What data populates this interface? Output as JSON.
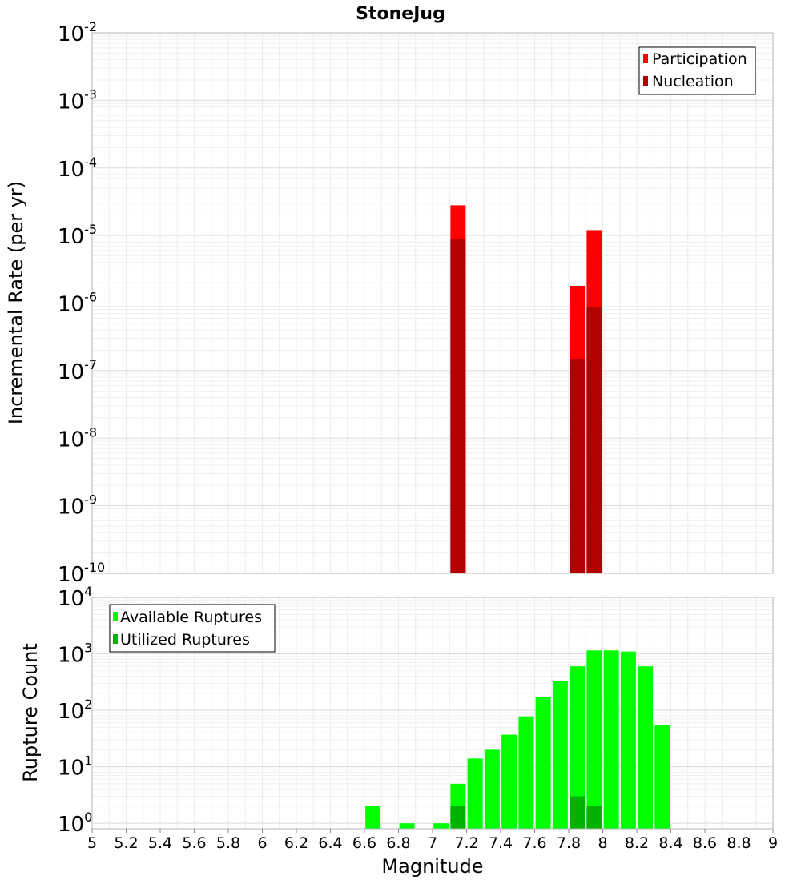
{
  "chart_data": [
    {
      "type": "bar",
      "title": "StoneJug",
      "xlabel": "",
      "ylabel": "Incremental Rate (per yr)",
      "yscale": "log",
      "ylim": [
        1e-10,
        0.01
      ],
      "xlim": [
        5,
        9
      ],
      "ytick_exponents": [
        "-10",
        "-9",
        "-8",
        "-7",
        "-6",
        "-5",
        "-4",
        "-3",
        "-2"
      ],
      "ytick_base": "10",
      "legend_position": "top-right",
      "series": [
        {
          "name": "Participation",
          "color": "#ff0000",
          "x": [
            7.15,
            7.85,
            7.95
          ],
          "values": [
            2.8e-05,
            1.8e-06,
            1.2e-05
          ]
        },
        {
          "name": "Nucleation",
          "color": "#b30000",
          "x": [
            7.15,
            7.85,
            7.95
          ],
          "values": [
            9e-06,
            1.5e-07,
            8.8e-07
          ]
        }
      ]
    },
    {
      "type": "bar",
      "title": "",
      "xlabel": "Magnitude",
      "ylabel": "Rupture Count",
      "yscale": "log",
      "ylim": [
        0.8,
        10000
      ],
      "xlim": [
        5,
        9
      ],
      "ytick_exponents": [
        "0",
        "1",
        "2",
        "3",
        "4"
      ],
      "ytick_base": "10",
      "xticks": [
        "5",
        "5.2",
        "5.4",
        "5.6",
        "5.8",
        "6",
        "6.2",
        "6.4",
        "6.6",
        "6.8",
        "7",
        "7.2",
        "7.4",
        "7.6",
        "7.8",
        "8",
        "8.2",
        "8.4",
        "8.6",
        "8.8",
        "9"
      ],
      "legend_position": "top-left",
      "series": [
        {
          "name": "Available Ruptures",
          "color": "#00ff00",
          "x": [
            6.65,
            6.85,
            7.05,
            7.15,
            7.25,
            7.35,
            7.45,
            7.55,
            7.65,
            7.75,
            7.85,
            7.95,
            8.05,
            8.15,
            8.25,
            8.35
          ],
          "values": [
            2,
            1,
            1,
            5,
            14,
            20,
            37,
            78,
            170,
            330,
            600,
            1150,
            1150,
            1100,
            600,
            55
          ]
        },
        {
          "name": "Utilized Ruptures",
          "color": "#00b300",
          "x": [
            7.15,
            7.85,
            7.95
          ],
          "values": [
            2,
            3,
            2
          ]
        }
      ]
    }
  ]
}
